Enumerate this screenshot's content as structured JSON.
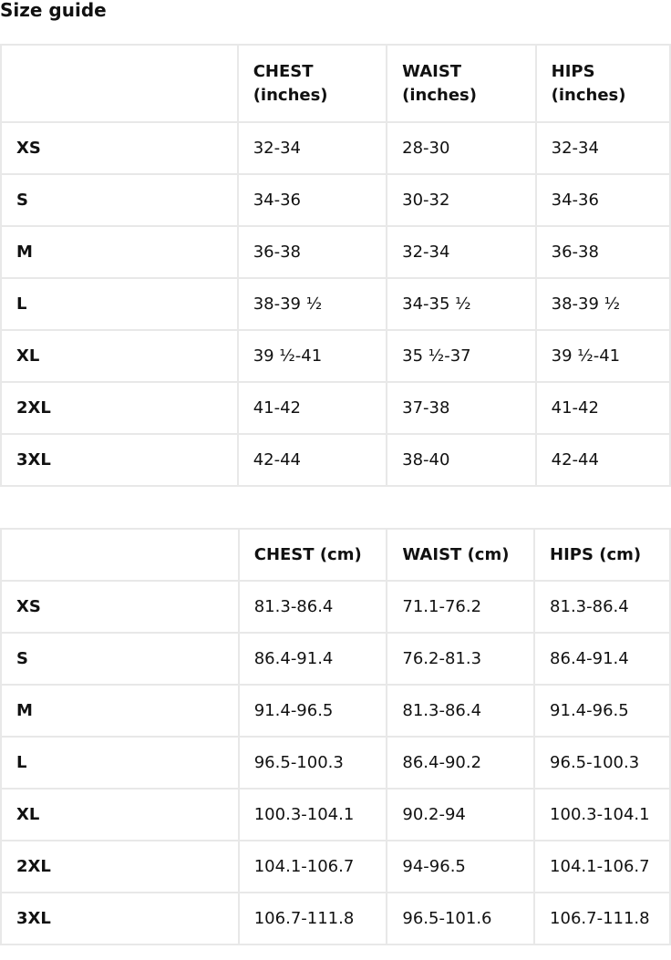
{
  "title": "Size guide",
  "inches_table": {
    "headers": [
      "",
      "CHEST (inches)",
      "WAIST (inches)",
      "HIPS (inches)"
    ],
    "rows": [
      [
        "XS",
        "32-34",
        "28-30",
        "32-34"
      ],
      [
        "S",
        "34-36",
        "30-32",
        "34-36"
      ],
      [
        "M",
        "36-38",
        "32-34",
        "36-38"
      ],
      [
        "L",
        "38-39 ½",
        "34-35 ½",
        "38-39 ½"
      ],
      [
        "XL",
        "39 ½-41",
        "35 ½-37",
        "39 ½-41"
      ],
      [
        "2XL",
        "41-42",
        "37-38",
        "41-42"
      ],
      [
        "3XL",
        "42-44",
        "38-40",
        "42-44"
      ]
    ]
  },
  "cm_table": {
    "headers": [
      "",
      "CHEST (cm)",
      "WAIST (cm)",
      "HIPS (cm)"
    ],
    "rows": [
      [
        "XS",
        "81.3-86.4",
        "71.1-76.2",
        "81.3-86.4"
      ],
      [
        "S",
        "86.4-91.4",
        "76.2-81.3",
        "86.4-91.4"
      ],
      [
        "M",
        "91.4-96.5",
        "81.3-86.4",
        "91.4-96.5"
      ],
      [
        "L",
        "96.5-100.3",
        "86.4-90.2",
        "96.5-100.3"
      ],
      [
        "XL",
        "100.3-104.1",
        "90.2-94",
        "100.3-104.1"
      ],
      [
        "2XL",
        "104.1-106.7",
        "94-96.5",
        "104.1-106.7"
      ],
      [
        "3XL",
        "106.7-111.8",
        "96.5-101.6",
        "106.7-111.8"
      ]
    ]
  }
}
